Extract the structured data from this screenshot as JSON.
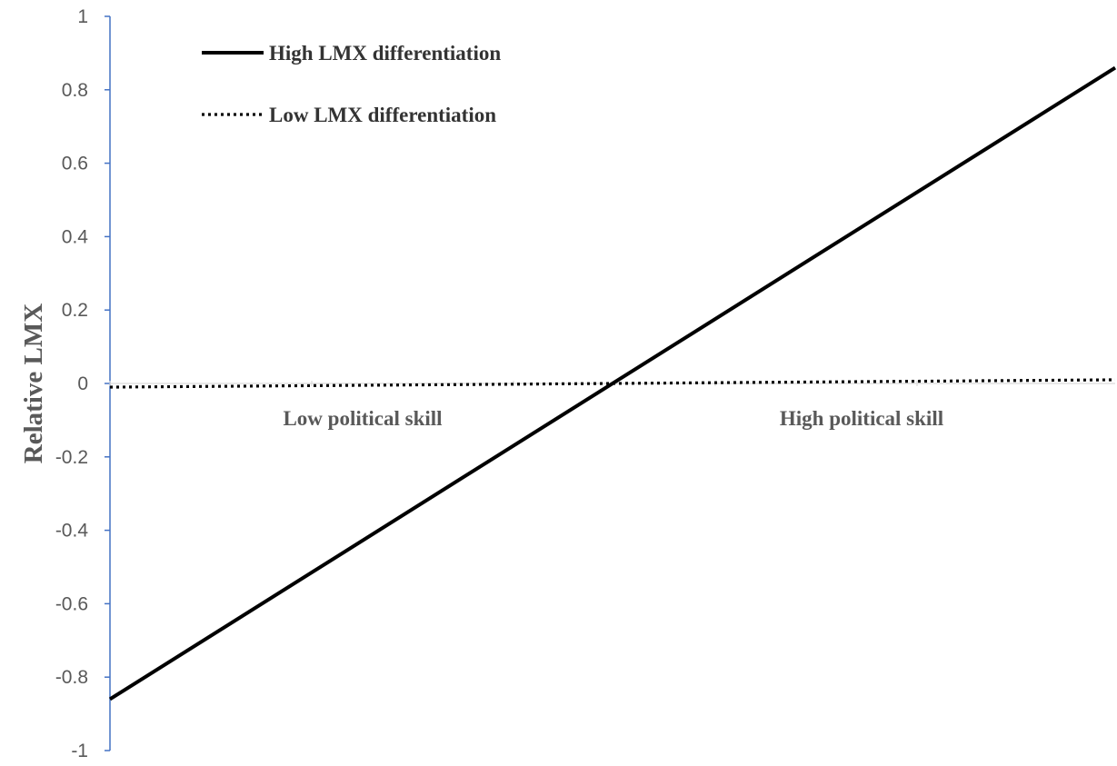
{
  "chart_data": {
    "type": "line",
    "title": "",
    "xlabel": "",
    "ylabel": "Relative LMX",
    "ylim": [
      -1,
      1
    ],
    "yticks": [
      1,
      0.8,
      0.6,
      0.4,
      0.2,
      0,
      -0.2,
      -0.4,
      -0.6,
      -0.8,
      -1
    ],
    "ytick_labels": [
      "1",
      "0.8",
      "0.6",
      "0.4",
      "0.2",
      "0",
      "-0.2",
      "-0.4",
      "-0.6",
      "-0.8",
      "-1"
    ],
    "categories": [
      "Low political skill",
      "High political skill"
    ],
    "series": [
      {
        "name": "High LMX differentiation",
        "values": [
          -0.86,
          0.86
        ],
        "style": "solid",
        "color": "#000000"
      },
      {
        "name": "Low LMX differentiation",
        "values": [
          -0.01,
          0.01
        ],
        "style": "dotted",
        "color": "#000000"
      }
    ],
    "legend_position": "top-left",
    "grid": false,
    "axis_color": "#4472C4"
  }
}
